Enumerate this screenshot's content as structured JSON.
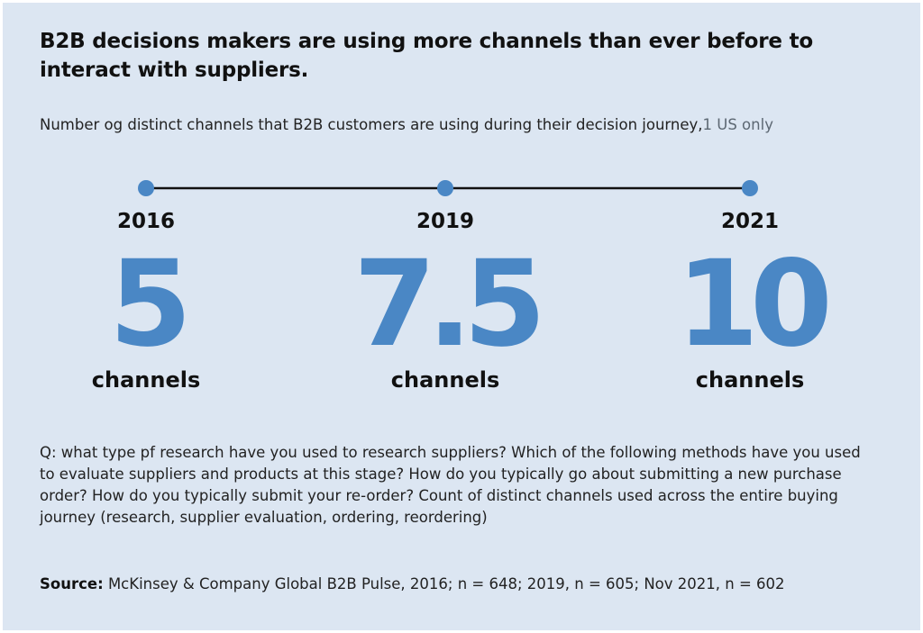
{
  "title": "B2B decisions makers are using more channels than ever before to interact with suppliers.",
  "subtitle": {
    "text": "Number og distinct channels that B2B customers are using during their decision journey,",
    "note": "1 US only"
  },
  "chart_data": {
    "type": "table",
    "categories": [
      "2016",
      "2019",
      "2021"
    ],
    "values": [
      5,
      7.5,
      10
    ],
    "value_labels": [
      "5",
      "7.5",
      "10"
    ],
    "unit_label": "channels",
    "colors": {
      "value": "#4a87c5",
      "timeline_dot": "#4a87c5",
      "timeline_line": "#111111",
      "background": "#dce6f2"
    }
  },
  "question": "Q: what type pf research have you used to research suppliers? Which of the following methods have you used to evaluate suppliers and products at this stage? How do you typically go about submitting a new purchase order? How do you typically submit your re-order? Count of distinct channels used across the entire buying journey (research, supplier evaluation, ordering, reordering)",
  "source": {
    "label": "Source:",
    "text": "McKinsey & Company Global B2B Pulse, 2016; n = 648; 2019, n = 605; Nov 2021, n = 602"
  }
}
